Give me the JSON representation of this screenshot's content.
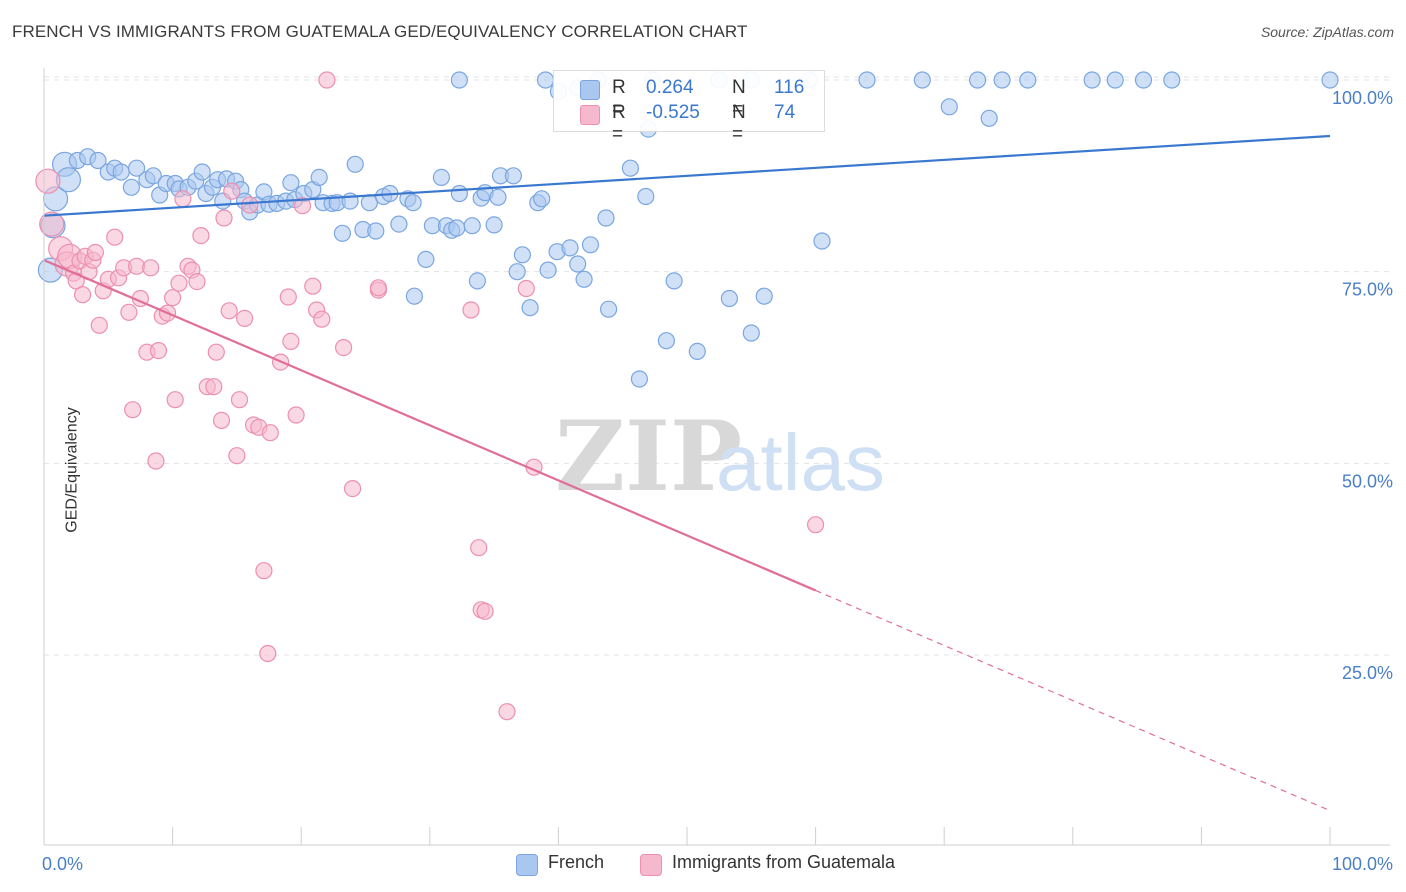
{
  "header": {
    "title": "FRENCH VS IMMIGRANTS FROM GUATEMALA GED/EQUIVALENCY CORRELATION CHART",
    "source": "Source: ZipAtlas.com"
  },
  "legend": {
    "r_label": "R =",
    "n_label": "N =",
    "french": {
      "r": "0.264",
      "n": "116"
    },
    "guatemala": {
      "r": "-0.525",
      "n": "74"
    }
  },
  "colors": {
    "french_fill": "#a9c7ef",
    "french_stroke": "#7aa6e0",
    "french_line": "#3a78d0",
    "guatemala_fill": "#f5b8cc",
    "guatemala_stroke": "#ec8fb0",
    "guatemala_line": "#e06e98",
    "axis_text": "#4a7fc8",
    "grid": "#e3e3e3"
  },
  "chart_data": {
    "type": "scatter",
    "title": "FRENCH VS IMMIGRANTS FROM GUATEMALA GED/EQUIVALENCY CORRELATION CHART",
    "xlabel": "",
    "ylabel": "GED/Equivalency",
    "xlim": [
      0,
      100
    ],
    "ylim": [
      0,
      102
    ],
    "x_tick_labels": [
      "0.0%",
      "100.0%"
    ],
    "y_ticks": [
      25,
      50,
      75,
      100
    ],
    "y_tick_labels": [
      "25.0%",
      "50.0%",
      "75.0%",
      "100.0%"
    ],
    "grid": true,
    "legend_position": "top-center",
    "watermark": "ZIPatlas",
    "series": [
      {
        "name": "French",
        "r": 0.264,
        "n": 116,
        "trend": {
          "x": [
            0,
            100
          ],
          "y": [
            82.3,
            92.7
          ],
          "dashed_after": null
        },
        "points": [
          [
            0.5,
            75.2
          ],
          [
            0.7,
            81
          ],
          [
            0.9,
            84.5
          ],
          [
            1.6,
            89
          ],
          [
            1.9,
            87
          ],
          [
            2.6,
            89.5
          ],
          [
            3.4,
            90
          ],
          [
            4.2,
            89.5
          ],
          [
            5,
            88
          ],
          [
            5.5,
            88.5
          ],
          [
            6,
            88
          ],
          [
            6.8,
            86
          ],
          [
            7.2,
            88.5
          ],
          [
            8,
            87
          ],
          [
            8.5,
            87.5
          ],
          [
            9,
            85
          ],
          [
            9.5,
            86.5
          ],
          [
            10.2,
            86.5
          ],
          [
            10.5,
            85.8
          ],
          [
            11.2,
            86
          ],
          [
            11.8,
            86.8
          ],
          [
            12.3,
            88
          ],
          [
            12.6,
            85.2
          ],
          [
            13.1,
            86
          ],
          [
            13.5,
            87
          ],
          [
            13.9,
            84.2
          ],
          [
            14.2,
            87.1
          ],
          [
            14.9,
            86.8
          ],
          [
            15.3,
            85.7
          ],
          [
            15.6,
            84.2
          ],
          [
            16,
            82.8
          ],
          [
            16.6,
            83.7
          ],
          [
            17.1,
            85.4
          ],
          [
            17.5,
            83.8
          ],
          [
            18.1,
            83.9
          ],
          [
            18.8,
            84.2
          ],
          [
            19.2,
            86.6
          ],
          [
            19.5,
            84.4
          ],
          [
            20.2,
            85.2
          ],
          [
            20.9,
            85.7
          ],
          [
            21.4,
            87.3
          ],
          [
            21.7,
            84
          ],
          [
            22.4,
            83.9
          ],
          [
            22.8,
            84
          ],
          [
            23.2,
            80
          ],
          [
            23.8,
            84.2
          ],
          [
            24.2,
            89
          ],
          [
            24.8,
            80.5
          ],
          [
            25.3,
            84
          ],
          [
            25.8,
            80.3
          ],
          [
            26.4,
            84.8
          ],
          [
            26.9,
            85.2
          ],
          [
            27.6,
            81.2
          ],
          [
            28.3,
            84.5
          ],
          [
            28.7,
            84
          ],
          [
            29.7,
            76.6
          ],
          [
            30.2,
            81
          ],
          [
            30.9,
            87.3
          ],
          [
            31.3,
            81
          ],
          [
            31.7,
            80.4
          ],
          [
            32.1,
            80.7
          ],
          [
            32.3,
            85.2
          ],
          [
            33.3,
            81
          ],
          [
            33.7,
            73.8
          ],
          [
            34,
            84.6
          ],
          [
            34.3,
            85.3
          ],
          [
            35,
            81.1
          ],
          [
            35.3,
            84.7
          ],
          [
            35.5,
            87.5
          ],
          [
            36.5,
            87.5
          ],
          [
            36.8,
            75
          ],
          [
            37.2,
            77.2
          ],
          [
            37.8,
            70.3
          ],
          [
            38.4,
            84
          ],
          [
            38.7,
            84.5
          ],
          [
            39.2,
            75.2
          ],
          [
            39.9,
            77.6
          ],
          [
            40.9,
            78.1
          ],
          [
            41.5,
            76
          ],
          [
            42,
            74
          ],
          [
            42.5,
            78.5
          ],
          [
            43.7,
            82
          ],
          [
            43.9,
            70.1
          ],
          [
            45.6,
            88.5
          ],
          [
            46.3,
            61
          ],
          [
            46.8,
            84.8
          ],
          [
            47,
            93.6
          ],
          [
            48.4,
            66
          ],
          [
            49,
            73.8
          ],
          [
            50.8,
            64.6
          ],
          [
            53.3,
            71.5
          ],
          [
            55,
            67
          ],
          [
            56,
            71.8
          ],
          [
            60.5,
            79
          ],
          [
            70.4,
            96.5
          ],
          [
            73.5,
            95
          ],
          [
            28.8,
            71.8
          ],
          [
            32.3,
            100
          ],
          [
            39,
            100
          ],
          [
            40,
            98.5
          ],
          [
            41.5,
            99
          ],
          [
            43.1,
            100
          ],
          [
            47.3,
            100
          ],
          [
            52.5,
            100
          ],
          [
            55,
            100
          ],
          [
            59.5,
            100
          ],
          [
            64,
            100
          ],
          [
            68.3,
            100
          ],
          [
            72.6,
            100
          ],
          [
            74.5,
            100
          ],
          [
            76.5,
            100
          ],
          [
            81.5,
            100
          ],
          [
            83.3,
            100
          ],
          [
            85.5,
            100
          ],
          [
            87.7,
            100
          ],
          [
            100,
            100
          ]
        ]
      },
      {
        "name": "Immigrants from Guatemala",
        "r": -0.525,
        "n": 74,
        "trend": {
          "x": [
            0,
            100
          ],
          "y": [
            76.5,
            4.7
          ],
          "dashed_after": 60
        },
        "points": [
          [
            0.3,
            86.8
          ],
          [
            0.6,
            81.2
          ],
          [
            1.3,
            78
          ],
          [
            1.8,
            76
          ],
          [
            2,
            77
          ],
          [
            2.3,
            74.8
          ],
          [
            2.5,
            73.8
          ],
          [
            2.8,
            76.4
          ],
          [
            3,
            72
          ],
          [
            3.2,
            77
          ],
          [
            3.5,
            75
          ],
          [
            3.8,
            76.5
          ],
          [
            4,
            77.5
          ],
          [
            4.3,
            68
          ],
          [
            4.6,
            72.5
          ],
          [
            5,
            74
          ],
          [
            5.5,
            79.5
          ],
          [
            5.8,
            74.2
          ],
          [
            6.2,
            75.5
          ],
          [
            6.6,
            69.7
          ],
          [
            6.9,
            57
          ],
          [
            7.2,
            75.7
          ],
          [
            7.5,
            71.5
          ],
          [
            8,
            64.5
          ],
          [
            8.3,
            75.5
          ],
          [
            8.7,
            50.3
          ],
          [
            8.9,
            64.7
          ],
          [
            9.2,
            69.2
          ],
          [
            9.6,
            69.6
          ],
          [
            10,
            71.6
          ],
          [
            10.2,
            58.3
          ],
          [
            10.5,
            73.5
          ],
          [
            10.8,
            84.5
          ],
          [
            11.2,
            75.7
          ],
          [
            11.5,
            75.2
          ],
          [
            11.9,
            73.7
          ],
          [
            12.2,
            79.7
          ],
          [
            12.7,
            60
          ],
          [
            13.2,
            60
          ],
          [
            13.4,
            64.5
          ],
          [
            13.8,
            55.6
          ],
          [
            14,
            82
          ],
          [
            14.4,
            69.9
          ],
          [
            14.6,
            85.5
          ],
          [
            15,
            51
          ],
          [
            15.2,
            58.3
          ],
          [
            15.6,
            68.9
          ],
          [
            16,
            83.7
          ],
          [
            16.3,
            55
          ],
          [
            16.7,
            54.7
          ],
          [
            17.1,
            36
          ],
          [
            17.4,
            25.2
          ],
          [
            17.6,
            54
          ],
          [
            18.4,
            63.2
          ],
          [
            19,
            71.7
          ],
          [
            19.2,
            65.9
          ],
          [
            19.6,
            56.3
          ],
          [
            20.1,
            83.6
          ],
          [
            20.9,
            73.1
          ],
          [
            21.2,
            70
          ],
          [
            21.6,
            68.8
          ],
          [
            22,
            100
          ],
          [
            23.3,
            65.1
          ],
          [
            24,
            46.7
          ],
          [
            26,
            72.6
          ],
          [
            26,
            72.9
          ],
          [
            33.2,
            70
          ],
          [
            33.8,
            39
          ],
          [
            34,
            30.9
          ],
          [
            34.3,
            30.7
          ],
          [
            36,
            17.6
          ],
          [
            37.5,
            72.8
          ],
          [
            38.1,
            49.5
          ],
          [
            60,
            42
          ]
        ]
      }
    ]
  }
}
